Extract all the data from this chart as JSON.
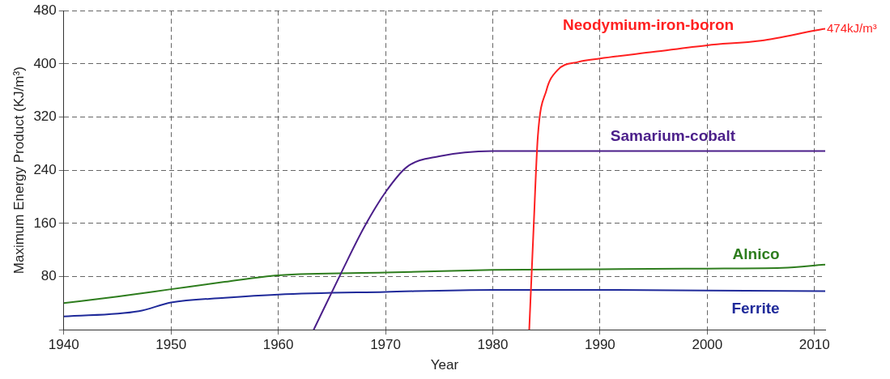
{
  "chart_data": {
    "type": "line",
    "xlabel": "Year",
    "ylabel": "Maximum Energy Product (KJ/m³)",
    "xlim": [
      1940,
      2011
    ],
    "ylim": [
      0,
      480
    ],
    "xticks": [
      1940,
      1950,
      1960,
      1970,
      1980,
      1990,
      2000,
      2010
    ],
    "yticks": [
      {
        "value": 0,
        "label": null
      },
      80,
      160,
      240,
      320,
      400,
      480
    ],
    "grid": true,
    "legend": false,
    "marker": "none",
    "line_style": "solid",
    "series": [
      {
        "name": "Neodymium-iron-boron",
        "color": "#ff2020",
        "x": [
          1983.4,
          1983.8,
          1984.2,
          1985,
          1986,
          1988,
          1990,
          1995,
          2000,
          2005,
          2010,
          2011
        ],
        "values": [
          0,
          150,
          290,
          360,
          390,
          403,
          408,
          418,
          428,
          435,
          450,
          453
        ]
      },
      {
        "name": "Samarium-cobalt",
        "color": "#4b1f8a",
        "x": [
          1963.3,
          1966,
          1968,
          1970,
          1972,
          1975,
          1980,
          1990,
          2000,
          2011
        ],
        "values": [
          0,
          90,
          154,
          207,
          245,
          261,
          269,
          269,
          269,
          269
        ]
      },
      {
        "name": "Alnico",
        "color": "#2e7d1e",
        "x": [
          1940,
          1945,
          1950,
          1955,
          1960,
          1970,
          1980,
          1990,
          2000,
          2007,
          2011
        ],
        "values": [
          40,
          50,
          61,
          72,
          82,
          86,
          90,
          91,
          92,
          93,
          98
        ]
      },
      {
        "name": "Ferrite",
        "color": "#1f2a9a",
        "x": [
          1940,
          1947,
          1950,
          1955,
          1960,
          1970,
          1980,
          1990,
          2000,
          2011
        ],
        "values": [
          20,
          28,
          41,
          48,
          53,
          57,
          60,
          60,
          59,
          58
        ]
      }
    ],
    "annotations": [
      {
        "text": "474kJ/m³",
        "x": 2011,
        "y": 453
      }
    ]
  }
}
